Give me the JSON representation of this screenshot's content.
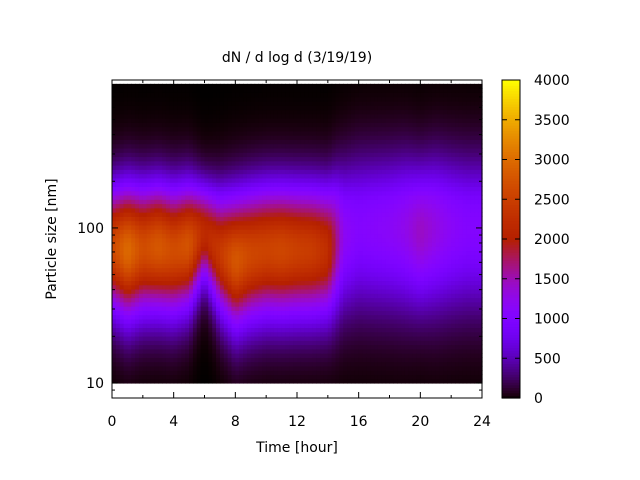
{
  "chart_data": {
    "type": "heatmap",
    "title": "dN / d log d (3/19/19)",
    "xlabel": "Time [hour]",
    "ylabel": "Particle size [nm]",
    "xlim": [
      0,
      24
    ],
    "ylim": [
      8,
      900
    ],
    "y_scale": "log",
    "x_ticks": [
      0,
      4,
      8,
      12,
      16,
      20,
      24
    ],
    "x_tick_labels": [
      "0",
      "4",
      "8",
      "12",
      "16",
      "20",
      "24"
    ],
    "y_ticks": [
      10,
      100
    ],
    "y_tick_labels": [
      "10",
      "100"
    ],
    "colorbar": {
      "min": 0,
      "max": 4000,
      "ticks": [
        0,
        500,
        1000,
        1500,
        2000,
        2500,
        3000,
        3500,
        4000
      ],
      "tick_labels": [
        "0",
        "500",
        "1000",
        "1500",
        "2000",
        "2500",
        "3000",
        "3500",
        "4000"
      ],
      "palette": "gnuplot rgbformulae 7,5,15 (black-purple-red-orange-yellow)"
    },
    "size_range_nm": [
      10,
      850
    ],
    "mode_profile": [
      {
        "hour": 0,
        "peak_nm": 75,
        "peak_value": 2600,
        "width": 0.28
      },
      {
        "hour": 1,
        "peak_nm": 72,
        "peak_value": 3000,
        "width": 0.3
      },
      {
        "hour": 2,
        "peak_nm": 74,
        "peak_value": 2650,
        "width": 0.29
      },
      {
        "hour": 3,
        "peak_nm": 76,
        "peak_value": 2800,
        "width": 0.29
      },
      {
        "hour": 4,
        "peak_nm": 72,
        "peak_value": 2650,
        "width": 0.29
      },
      {
        "hour": 5,
        "peak_nm": 78,
        "peak_value": 2750,
        "width": 0.28
      },
      {
        "hour": 6,
        "peak_nm": 95,
        "peak_value": 2150,
        "width": 0.22
      },
      {
        "hour": 7,
        "peak_nm": 70,
        "peak_value": 2400,
        "width": 0.27
      },
      {
        "hour": 8,
        "peak_nm": 62,
        "peak_value": 2800,
        "width": 0.3
      },
      {
        "hour": 9,
        "peak_nm": 68,
        "peak_value": 2600,
        "width": 0.3
      },
      {
        "hour": 10,
        "peak_nm": 72,
        "peak_value": 2550,
        "width": 0.3
      },
      {
        "hour": 11,
        "peak_nm": 72,
        "peak_value": 2600,
        "width": 0.3
      },
      {
        "hour": 12,
        "peak_nm": 72,
        "peak_value": 2500,
        "width": 0.3
      },
      {
        "hour": 13,
        "peak_nm": 72,
        "peak_value": 2450,
        "width": 0.3
      },
      {
        "hour": 14,
        "peak_nm": 72,
        "peak_value": 2250,
        "width": 0.3
      },
      {
        "hour": 15,
        "peak_nm": 90,
        "peak_value": 1200,
        "width": 0.34
      },
      {
        "hour": 16,
        "peak_nm": 100,
        "peak_value": 1050,
        "width": 0.36
      },
      {
        "hour": 17,
        "peak_nm": 100,
        "peak_value": 1100,
        "width": 0.36
      },
      {
        "hour": 18,
        "peak_nm": 100,
        "peak_value": 1150,
        "width": 0.36
      },
      {
        "hour": 19,
        "peak_nm": 100,
        "peak_value": 1250,
        "width": 0.36
      },
      {
        "hour": 20,
        "peak_nm": 95,
        "peak_value": 1450,
        "width": 0.34
      },
      {
        "hour": 21,
        "peak_nm": 100,
        "peak_value": 1300,
        "width": 0.36
      },
      {
        "hour": 22,
        "peak_nm": 100,
        "peak_value": 1150,
        "width": 0.36
      },
      {
        "hour": 23,
        "peak_nm": 100,
        "peak_value": 1050,
        "width": 0.36
      },
      {
        "hour": 24,
        "peak_nm": 100,
        "peak_value": 1050,
        "width": 0.36
      }
    ]
  }
}
